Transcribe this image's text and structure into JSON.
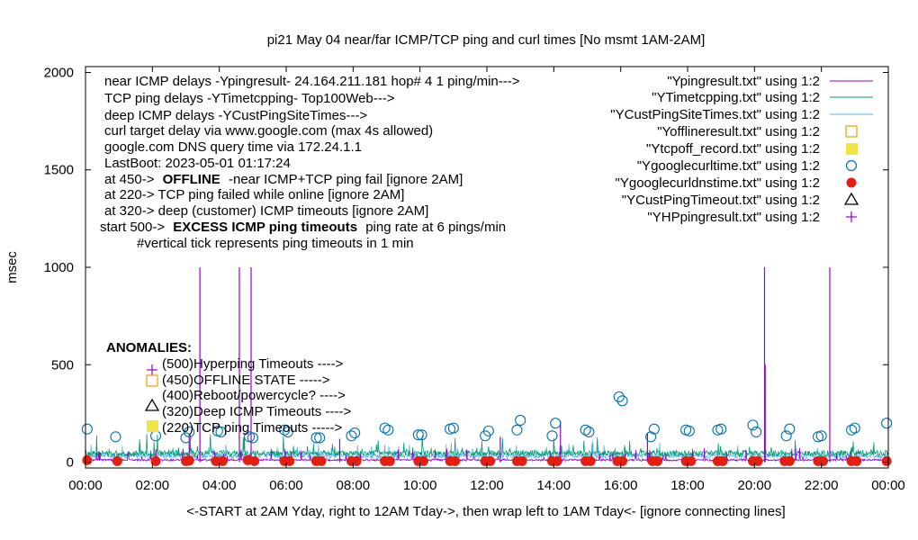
{
  "chart_data": {
    "type": "line",
    "title": "pi21 May 04  near/far ICMP/TCP ping and curl times [No msmt 1AM-2AM]",
    "xlabel": "<-START at 2AM Yday, right to 12AM Tday->, then wrap left to 1AM Tday<- [ignore connecting lines]",
    "ylabel": "msec",
    "xlim": [
      0,
      24
    ],
    "ylim": [
      -30,
      2030
    ],
    "x_ticks": [
      "00:00",
      "02:00",
      "04:00",
      "06:00",
      "08:00",
      "10:00",
      "12:00",
      "14:00",
      "16:00",
      "18:00",
      "20:00",
      "22:00",
      "00:00"
    ],
    "y_ticks": [
      "0",
      "500",
      "1000",
      "1500",
      "2000"
    ],
    "grid": false,
    "legend_position": "top-right",
    "legend": [
      "\"Ypingresult.txt\" using 1:2",
      "\"YTimetcpping.txt\" using 1:2",
      "\"YCustPingSiteTimes.txt\" using 1:2",
      "\"Yofflineresult.txt\" using 1:2",
      "\"Ytcpoff_record.txt\" using 1:2",
      "\"Ygooglecurltime.txt\" using 1:2",
      "\"Ygooglecurldnstime.txt\" using 1:2",
      "\"YCustPingTimeout.txt\" using 1:2",
      "\"YHPpingresult.txt\" using 1:2"
    ],
    "info_lines": [
      "near ICMP delays -Ypingresult- 24.164.211.181 hop# 4 1 ping/min--->",
      "TCP ping delays -YTimetcpping- Top100Web--->",
      "deep ICMP delays -YCustPingSiteTimes--->",
      "curl target delay via www.google.com (max 4s allowed)",
      "google.com DNS query time via 172.24.1.1",
      "LastBoot: 2023-05-01 01:17:24"
    ],
    "offline_prefix": "at 450->",
    "offline_bold": "OFFLINE",
    "offline_suffix": "-near ICMP+TCP ping fail [ignore 2AM]",
    "tcp_fail_note": "at 220-> TCP ping failed while online [ignore 2AM]",
    "deep_timeout_note": "at 320-> deep (customer) ICMP timeouts [ignore 2AM]",
    "excess_prefix": "start 500->",
    "excess_bold": "EXCESS ICMP ping timeouts",
    "excess_suffix": "ping rate at 6 pings/min",
    "vertical_tick_note": "#vertical tick represents ping timeouts in 1 min",
    "anomalies_title": "ANOMALIES:",
    "anomalies": [
      "(500)Hyperping Timeouts ---->",
      "(450)OFFLINE STATE ----->",
      "(400)Reboot/powercycle? ---->",
      "(320)Deep  ICMP Timeouts ---->",
      "(220)TCP ping Timeouts ----->"
    ],
    "colors": {
      "ping": "#9400d3",
      "tcp": "#009e73",
      "deep": "#56b4e9",
      "offline": "#e69f00",
      "tcpoff": "#f0e442",
      "curl": "#0072b2",
      "dns": "#e51e10",
      "custtimeout": "#000000",
      "hpping": "#9400d3"
    },
    "ping_spikes": [
      {
        "x": 3.42,
        "y": 1000
      },
      {
        "x": 4.6,
        "y": 1000
      },
      {
        "x": 4.95,
        "y": 1000
      },
      {
        "x": 20.3,
        "y": 1000
      },
      {
        "x": 22.25,
        "y": 1000
      },
      {
        "x": 20.32,
        "y": 500
      },
      {
        "x": 14.2,
        "y": 210
      },
      {
        "x": 16.8,
        "y": 150
      },
      {
        "x": 3.1,
        "y": 140
      },
      {
        "x": 7.6,
        "y": 120
      },
      {
        "x": 12.4,
        "y": 130
      }
    ],
    "curl_points": [
      {
        "x": 0.05,
        "y": 170
      },
      {
        "x": 0.9,
        "y": 130
      },
      {
        "x": 2.1,
        "y": 135
      },
      {
        "x": 3.0,
        "y": 125
      },
      {
        "x": 3.1,
        "y": 155
      },
      {
        "x": 3.95,
        "y": 160
      },
      {
        "x": 4.05,
        "y": 155
      },
      {
        "x": 4.9,
        "y": 130
      },
      {
        "x": 5.0,
        "y": 125
      },
      {
        "x": 5.95,
        "y": 165
      },
      {
        "x": 6.05,
        "y": 155
      },
      {
        "x": 6.9,
        "y": 125
      },
      {
        "x": 7.0,
        "y": 125
      },
      {
        "x": 7.95,
        "y": 135
      },
      {
        "x": 8.05,
        "y": 150
      },
      {
        "x": 8.95,
        "y": 175
      },
      {
        "x": 9.05,
        "y": 165
      },
      {
        "x": 9.95,
        "y": 140
      },
      {
        "x": 10.05,
        "y": 140
      },
      {
        "x": 10.9,
        "y": 170
      },
      {
        "x": 11.0,
        "y": 175
      },
      {
        "x": 11.95,
        "y": 135
      },
      {
        "x": 12.05,
        "y": 160
      },
      {
        "x": 12.9,
        "y": 165
      },
      {
        "x": 13.0,
        "y": 215
      },
      {
        "x": 13.95,
        "y": 135
      },
      {
        "x": 14.05,
        "y": 200
      },
      {
        "x": 14.95,
        "y": 165
      },
      {
        "x": 15.05,
        "y": 155
      },
      {
        "x": 15.95,
        "y": 335
      },
      {
        "x": 16.05,
        "y": 315
      },
      {
        "x": 16.9,
        "y": 130
      },
      {
        "x": 17.0,
        "y": 170
      },
      {
        "x": 17.95,
        "y": 165
      },
      {
        "x": 18.05,
        "y": 160
      },
      {
        "x": 18.9,
        "y": 165
      },
      {
        "x": 19.0,
        "y": 170
      },
      {
        "x": 19.95,
        "y": 190
      },
      {
        "x": 20.05,
        "y": 155
      },
      {
        "x": 20.95,
        "y": 135
      },
      {
        "x": 21.05,
        "y": 170
      },
      {
        "x": 21.9,
        "y": 130
      },
      {
        "x": 22.0,
        "y": 135
      },
      {
        "x": 22.9,
        "y": 165
      },
      {
        "x": 23.0,
        "y": 175
      },
      {
        "x": 23.95,
        "y": 200
      }
    ],
    "dns_points": [
      {
        "x": 0.05,
        "y": 10
      },
      {
        "x": 0.95,
        "y": 5
      },
      {
        "x": 2.1,
        "y": 5
      },
      {
        "x": 3.0,
        "y": 5
      },
      {
        "x": 3.1,
        "y": 8
      },
      {
        "x": 3.9,
        "y": 5
      },
      {
        "x": 4.1,
        "y": 5
      },
      {
        "x": 4.85,
        "y": 10
      },
      {
        "x": 5.05,
        "y": 5
      },
      {
        "x": 5.95,
        "y": 5
      },
      {
        "x": 6.1,
        "y": 5
      },
      {
        "x": 6.9,
        "y": 5
      },
      {
        "x": 7.05,
        "y": 5
      },
      {
        "x": 7.95,
        "y": 5
      },
      {
        "x": 8.1,
        "y": 5
      },
      {
        "x": 8.95,
        "y": 5
      },
      {
        "x": 9.1,
        "y": 5
      },
      {
        "x": 9.95,
        "y": 5
      },
      {
        "x": 10.1,
        "y": 5
      },
      {
        "x": 10.9,
        "y": 5
      },
      {
        "x": 11.05,
        "y": 5
      },
      {
        "x": 11.95,
        "y": 5
      },
      {
        "x": 12.1,
        "y": 5
      },
      {
        "x": 12.9,
        "y": 5
      },
      {
        "x": 13.05,
        "y": 5
      },
      {
        "x": 13.95,
        "y": 5
      },
      {
        "x": 14.1,
        "y": 5
      },
      {
        "x": 14.95,
        "y": 5
      },
      {
        "x": 15.1,
        "y": 5
      },
      {
        "x": 15.9,
        "y": 5
      },
      {
        "x": 16.05,
        "y": 5
      },
      {
        "x": 16.95,
        "y": 5
      },
      {
        "x": 17.1,
        "y": 5
      },
      {
        "x": 17.95,
        "y": 5
      },
      {
        "x": 18.1,
        "y": 5
      },
      {
        "x": 18.9,
        "y": 5
      },
      {
        "x": 19.05,
        "y": 5
      },
      {
        "x": 19.95,
        "y": 5
      },
      {
        "x": 20.1,
        "y": 5
      },
      {
        "x": 20.9,
        "y": 5
      },
      {
        "x": 21.05,
        "y": 5
      },
      {
        "x": 21.9,
        "y": 5
      },
      {
        "x": 22.05,
        "y": 5
      },
      {
        "x": 22.9,
        "y": 5
      },
      {
        "x": 23.05,
        "y": 5
      },
      {
        "x": 23.95,
        "y": 5
      }
    ]
  }
}
